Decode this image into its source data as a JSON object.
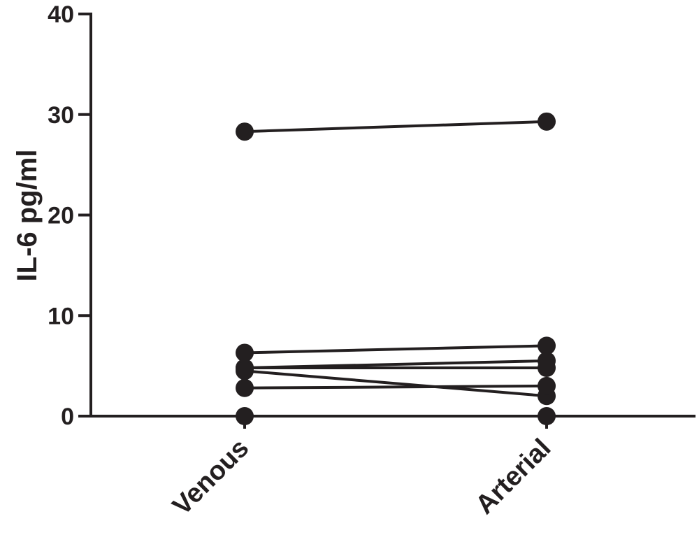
{
  "chart_data": {
    "type": "line",
    "xlabel": "",
    "ylabel": "IL-6 pg/ml",
    "categories": [
      "Venous",
      "Arterial"
    ],
    "ylim": [
      0,
      40
    ],
    "yticks": [
      0,
      10,
      20,
      30,
      40
    ],
    "grid": false,
    "legend": "none",
    "color": "#231f20",
    "series": [
      {
        "values": [
          28.3,
          29.3
        ]
      },
      {
        "values": [
          6.3,
          7.0
        ]
      },
      {
        "values": [
          4.8,
          5.5
        ]
      },
      {
        "values": [
          4.8,
          4.8
        ]
      },
      {
        "values": [
          4.5,
          2.0
        ]
      },
      {
        "values": [
          2.8,
          3.0
        ]
      },
      {
        "values": [
          0.0,
          0.0
        ]
      }
    ]
  }
}
